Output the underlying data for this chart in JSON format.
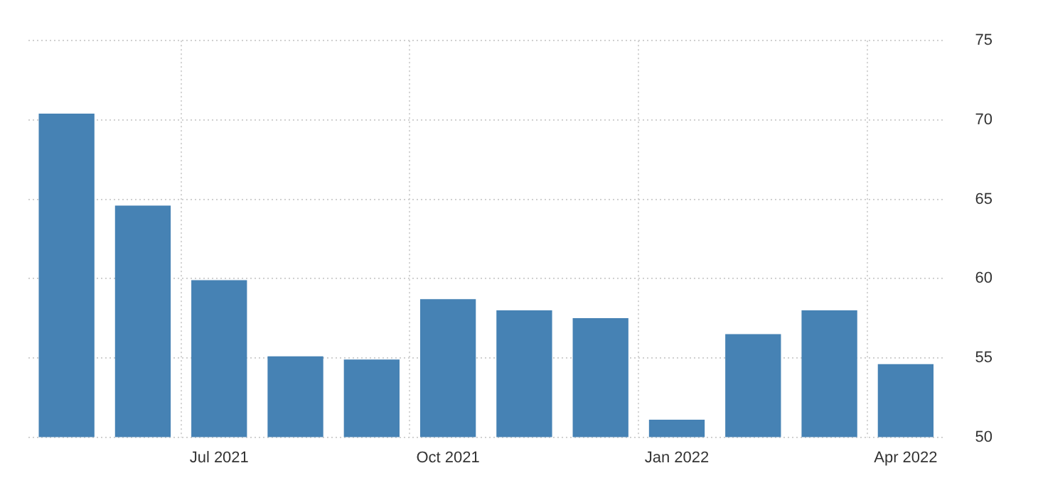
{
  "chart_data": {
    "type": "bar",
    "categories": [
      null,
      null,
      "Jul 2021",
      null,
      null,
      "Oct 2021",
      null,
      null,
      "Jan 2022",
      null,
      null,
      "Apr 2022"
    ],
    "values": [
      70.4,
      64.6,
      59.9,
      55.1,
      54.9,
      58.7,
      58.0,
      57.5,
      51.1,
      56.5,
      58.0,
      54.6
    ],
    "color": "#4682b4",
    "ylim": [
      50,
      75
    ],
    "yticks": [
      50,
      55,
      60,
      65,
      70,
      75
    ],
    "grid": true
  }
}
